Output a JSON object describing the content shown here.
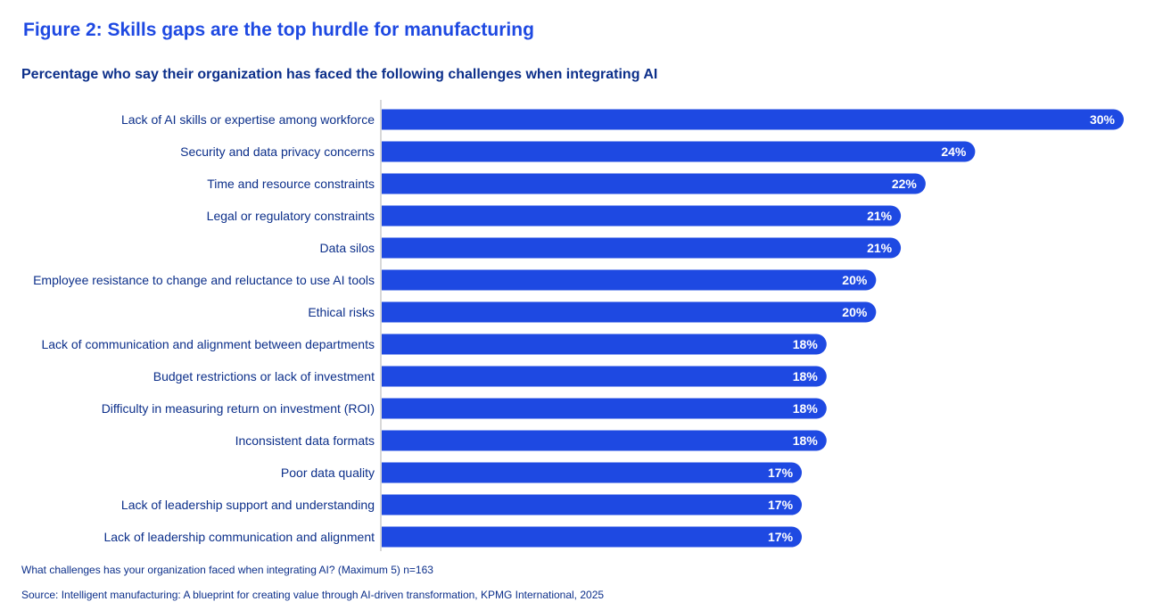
{
  "title": "Figure 2: Skills gaps are the top hurdle for manufacturing",
  "subtitle": "Percentage who say their organization has faced the following challenges when integrating AI",
  "footnote": "What challenges has your organization faced when integrating AI? (Maximum 5) n=163",
  "source": "Source: Intelligent manufacturing: A blueprint for creating value through AI-driven transformation, KPMG International, 2025",
  "colors": {
    "bar": "#1e49e2",
    "label": "#0c2f8a",
    "value_text": "#ffffff",
    "axis": "#b0b0b0"
  },
  "chart_data": {
    "type": "bar",
    "orientation": "horizontal",
    "categories": [
      "Lack of AI skills or expertise among workforce",
      "Security and data privacy concerns",
      "Time and resource constraints",
      "Legal or regulatory constraints",
      "Data silos",
      "Employee resistance to change and reluctance to use AI tools",
      "Ethical risks",
      "Lack of communication and alignment between departments",
      "Budget restrictions or lack of investment",
      "Difficulty in measuring return on investment (ROI)",
      "Inconsistent data formats",
      "Poor data quality",
      "Lack of leadership support and understanding",
      "Lack of leadership communication and alignment"
    ],
    "values": [
      30,
      24,
      22,
      21,
      21,
      20,
      20,
      18,
      18,
      18,
      18,
      17,
      17,
      17
    ],
    "value_labels": [
      "30%",
      "24%",
      "22%",
      "21%",
      "21%",
      "20%",
      "20%",
      "18%",
      "18%",
      "18%",
      "18%",
      "17%",
      "17%",
      "17%"
    ],
    "unit": "%",
    "xlim": [
      0,
      30
    ],
    "grid": false,
    "legend": "none"
  }
}
